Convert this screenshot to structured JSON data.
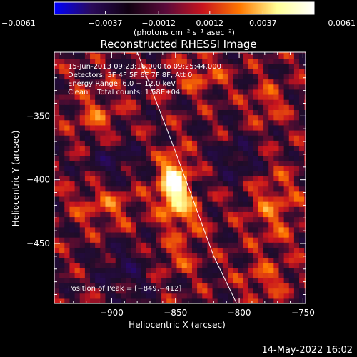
{
  "chart_data": {
    "type": "heatmap",
    "title": "Reconstructed RHESSI Image",
    "xlabel": "Heliocentric X (arcsec)",
    "ylabel": "Heliocentric Y (arcsec)",
    "xlim": [
      -945,
      -748
    ],
    "ylim": [
      -497,
      -300
    ],
    "x_ticks": [
      {
        "value": -900,
        "label": "−900"
      },
      {
        "value": -850,
        "label": "−850"
      },
      {
        "value": -800,
        "label": "−800"
      },
      {
        "value": -750,
        "label": "−750"
      }
    ],
    "y_ticks": [
      {
        "value": -350,
        "label": "−350"
      },
      {
        "value": -400,
        "label": "−400"
      },
      {
        "value": -450,
        "label": "−450"
      }
    ],
    "colorbar": {
      "unit_label": "(photons cm⁻² s⁻¹ asec⁻²)",
      "range": [
        -0.0061,
        0.0061
      ],
      "ticks": [
        {
          "value": -0.0061,
          "label": "−0.0061"
        },
        {
          "value": -0.0037,
          "label": "−0.0037"
        },
        {
          "value": -0.0012,
          "label": "−0.0012"
        },
        {
          "value": 0.0012,
          "label": "0.0012"
        },
        {
          "value": 0.0037,
          "label": "0.0037"
        },
        {
          "value": 0.0061,
          "label": "0.0061"
        }
      ],
      "colors": [
        "#0000ff",
        "#2a0a5a",
        "#100010",
        "#5a0a3a",
        "#c8141e",
        "#ff7800",
        "#ffff96",
        "#ffffff"
      ]
    },
    "annotations": [
      "15‑Jun‑2013 09:23:16.000 to 09:25:44.000",
      "Detectors: 3F 4F 5F 6F 7F 8F, Att 0",
      "Energy Range: 6.0 − 12.0 keV",
      "Clean    Total counts: 1.58E+04"
    ],
    "peak_label": "Position of Peak = [−849,−412]",
    "peak": {
      "x": -849,
      "y": -412,
      "value": 0.0061
    },
    "limb_line": [
      [
        -880,
        -300
      ],
      [
        -850,
        -378
      ],
      [
        -820,
        -460
      ],
      [
        -802,
        -497
      ]
    ],
    "sources": [
      {
        "x": -851,
        "y": -405,
        "sx": 8,
        "sy": 16,
        "amp": 1.0
      },
      {
        "x": -838,
        "y": -430,
        "sx": 8,
        "sy": 10,
        "amp": 0.28
      },
      {
        "x": -905,
        "y": -420,
        "sx": 18,
        "sy": 12,
        "amp": 0.28
      },
      {
        "x": -912,
        "y": -350,
        "sx": 12,
        "sy": 14,
        "amp": 0.28
      },
      {
        "x": -830,
        "y": -318,
        "sx": 14,
        "sy": 10,
        "amp": 0.28
      },
      {
        "x": -773,
        "y": -420,
        "sx": 14,
        "sy": 22,
        "amp": 0.3
      },
      {
        "x": -778,
        "y": -340,
        "sx": 10,
        "sy": 12,
        "amp": 0.25
      },
      {
        "x": -780,
        "y": -478,
        "sx": 14,
        "sy": 10,
        "amp": 0.25
      },
      {
        "x": -850,
        "y": -460,
        "sx": 12,
        "sy": 10,
        "amp": 0.25
      },
      {
        "x": -900,
        "y": -385,
        "sx": 14,
        "sy": 12,
        "amp": -0.3
      },
      {
        "x": -800,
        "y": -385,
        "sx": 14,
        "sy": 14,
        "amp": -0.28
      },
      {
        "x": -890,
        "y": -470,
        "sx": 16,
        "sy": 14,
        "amp": -0.28
      }
    ]
  },
  "footer": {
    "timestamp": "14‑May‑2022 16:02"
  }
}
